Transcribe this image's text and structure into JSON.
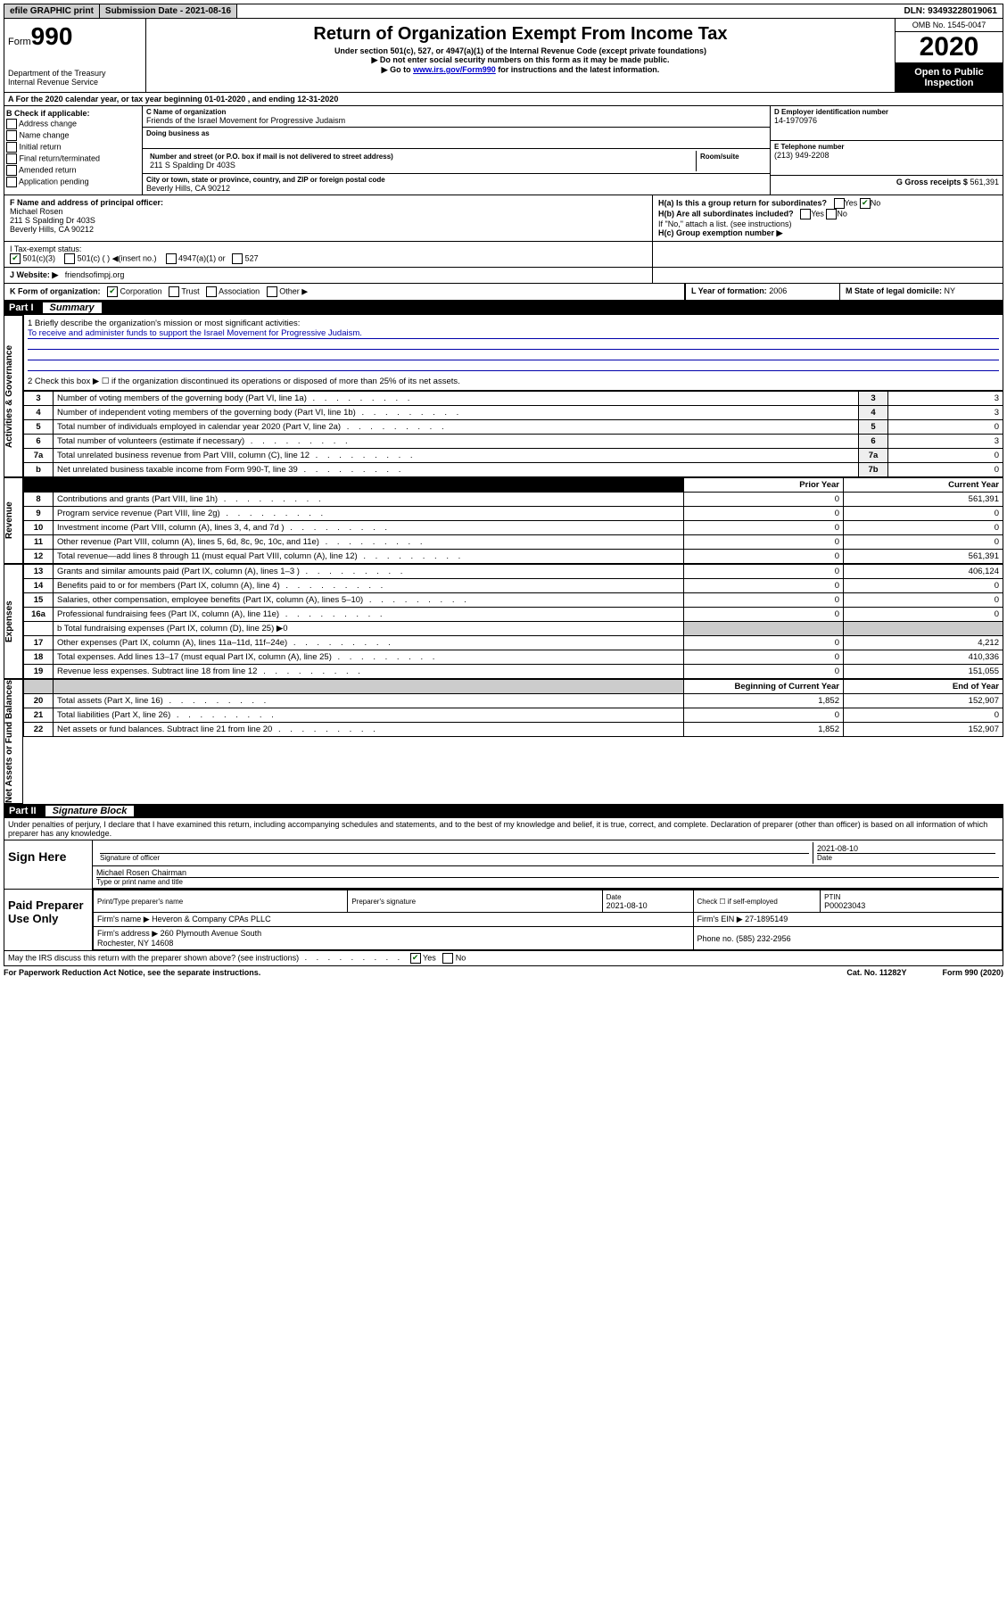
{
  "topbar": {
    "efile": "efile GRAPHIC print",
    "submission_label": "Submission Date - 2021-08-16",
    "dln": "DLN: 93493228019061"
  },
  "header": {
    "form_label": "Form",
    "form_num": "990",
    "dept": "Department of the Treasury\nInternal Revenue Service",
    "title": "Return of Organization Exempt From Income Tax",
    "sub1": "Under section 501(c), 527, or 4947(a)(1) of the Internal Revenue Code (except private foundations)",
    "sub2": "▶ Do not enter social security numbers on this form as it may be made public.",
    "sub3_pre": "▶ Go to ",
    "sub3_link": "www.irs.gov/Form990",
    "sub3_post": " for instructions and the latest information.",
    "omb": "OMB No. 1545-0047",
    "year": "2020",
    "open": "Open to Public Inspection"
  },
  "line_a": "A For the 2020 calendar year, or tax year beginning 01-01-2020   , and ending 12-31-2020",
  "box_b": {
    "title": "B Check if applicable:",
    "items": [
      "Address change",
      "Name change",
      "Initial return",
      "Final return/terminated",
      "Amended return",
      "Application pending"
    ]
  },
  "box_c": {
    "name_label": "C Name of organization",
    "name": "Friends of the Israel Movement for Progressive Judaism",
    "dba_label": "Doing business as",
    "addr_label": "Number and street (or P.O. box if mail is not delivered to street address)",
    "suite_label": "Room/suite",
    "addr": "211 S Spalding Dr 403S",
    "city_label": "City or town, state or province, country, and ZIP or foreign postal code",
    "city": "Beverly Hills, CA  90212"
  },
  "box_d": {
    "label": "D Employer identification number",
    "value": "14-1970976"
  },
  "box_e": {
    "label": "E Telephone number",
    "value": "(213) 949-2208"
  },
  "box_g": {
    "label": "G Gross receipts $",
    "value": "561,391"
  },
  "box_f": {
    "label": "F Name and address of principal officer:",
    "name": "Michael Rosen",
    "addr1": "211 S Spalding Dr 403S",
    "addr2": "Beverly Hills, CA  90212"
  },
  "box_h": {
    "ha": "H(a)  Is this a group return for subordinates?",
    "hb": "H(b)  Are all subordinates included?",
    "hb_note": "If \"No,\" attach a list. (see instructions)",
    "hc": "H(c)  Group exemption number ▶"
  },
  "tax_status": {
    "label": "I    Tax-exempt status:",
    "opt1": "501(c)(3)",
    "opt2": "501(c) (  ) ◀(insert no.)",
    "opt3": "4947(a)(1) or",
    "opt4": "527"
  },
  "website": {
    "label": "J   Website: ▶",
    "value": "friendsofimpj.org"
  },
  "box_k": "K Form of organization:",
  "k_opts": [
    "Corporation",
    "Trust",
    "Association",
    "Other ▶"
  ],
  "box_l": {
    "label": "L Year of formation:",
    "value": "2006"
  },
  "box_m": {
    "label": "M State of legal domicile:",
    "value": "NY"
  },
  "part1": {
    "num": "Part I",
    "title": "Summary"
  },
  "side_labels": {
    "ag": "Activities & Governance",
    "rev": "Revenue",
    "exp": "Expenses",
    "na": "Net Assets or Fund Balances"
  },
  "summary": {
    "line1_label": "1   Briefly describe the organization's mission or most significant activities:",
    "line1_text": "To receive and administer funds to support the Israel Movement for Progressive Judaism.",
    "line2": "2   Check this box ▶ ☐  if the organization discontinued its operations or disposed of more than 25% of its net assets.",
    "rows_top": [
      {
        "n": "3",
        "t": "Number of voting members of the governing body (Part VI, line 1a)",
        "box": "3",
        "v": "3"
      },
      {
        "n": "4",
        "t": "Number of independent voting members of the governing body (Part VI, line 1b)",
        "box": "4",
        "v": "3"
      },
      {
        "n": "5",
        "t": "Total number of individuals employed in calendar year 2020 (Part V, line 2a)",
        "box": "5",
        "v": "0"
      },
      {
        "n": "6",
        "t": "Total number of volunteers (estimate if necessary)",
        "box": "6",
        "v": "3"
      },
      {
        "n": "7a",
        "t": "Total unrelated business revenue from Part VIII, column (C), line 12",
        "box": "7a",
        "v": "0"
      },
      {
        "n": "b",
        "t": "Net unrelated business taxable income from Form 990-T, line 39",
        "box": "7b",
        "v": "0"
      }
    ],
    "col_prior": "Prior Year",
    "col_current": "Current Year",
    "rows_rev": [
      {
        "n": "8",
        "t": "Contributions and grants (Part VIII, line 1h)",
        "p": "0",
        "c": "561,391"
      },
      {
        "n": "9",
        "t": "Program service revenue (Part VIII, line 2g)",
        "p": "0",
        "c": "0"
      },
      {
        "n": "10",
        "t": "Investment income (Part VIII, column (A), lines 3, 4, and 7d )",
        "p": "0",
        "c": "0"
      },
      {
        "n": "11",
        "t": "Other revenue (Part VIII, column (A), lines 5, 6d, 8c, 9c, 10c, and 11e)",
        "p": "0",
        "c": "0"
      },
      {
        "n": "12",
        "t": "Total revenue—add lines 8 through 11 (must equal Part VIII, column (A), line 12)",
        "p": "0",
        "c": "561,391"
      }
    ],
    "rows_exp": [
      {
        "n": "13",
        "t": "Grants and similar amounts paid (Part IX, column (A), lines 1–3 )",
        "p": "0",
        "c": "406,124"
      },
      {
        "n": "14",
        "t": "Benefits paid to or for members (Part IX, column (A), line 4)",
        "p": "0",
        "c": "0"
      },
      {
        "n": "15",
        "t": "Salaries, other compensation, employee benefits (Part IX, column (A), lines 5–10)",
        "p": "0",
        "c": "0"
      },
      {
        "n": "16a",
        "t": "Professional fundraising fees (Part IX, column (A), line 11e)",
        "p": "0",
        "c": "0"
      }
    ],
    "line16b": "b   Total fundraising expenses (Part IX, column (D), line 25) ▶0",
    "rows_exp2": [
      {
        "n": "17",
        "t": "Other expenses (Part IX, column (A), lines 11a–11d, 11f–24e)",
        "p": "0",
        "c": "4,212"
      },
      {
        "n": "18",
        "t": "Total expenses. Add lines 13–17 (must equal Part IX, column (A), line 25)",
        "p": "0",
        "c": "410,336"
      },
      {
        "n": "19",
        "t": "Revenue less expenses. Subtract line 18 from line 12",
        "p": "0",
        "c": "151,055"
      }
    ],
    "col_begin": "Beginning of Current Year",
    "col_end": "End of Year",
    "rows_na": [
      {
        "n": "20",
        "t": "Total assets (Part X, line 16)",
        "p": "1,852",
        "c": "152,907"
      },
      {
        "n": "21",
        "t": "Total liabilities (Part X, line 26)",
        "p": "0",
        "c": "0"
      },
      {
        "n": "22",
        "t": "Net assets or fund balances. Subtract line 21 from line 20",
        "p": "1,852",
        "c": "152,907"
      }
    ]
  },
  "part2": {
    "num": "Part II",
    "title": "Signature Block"
  },
  "perjury": "Under penalties of perjury, I declare that I have examined this return, including accompanying schedules and statements, and to the best of my knowledge and belief, it is true, correct, and complete. Declaration of preparer (other than officer) is based on all information of which preparer has any knowledge.",
  "sign": {
    "here": "Sign Here",
    "sig_label": "Signature of officer",
    "date": "2021-08-10",
    "date_label": "Date",
    "name": "Michael Rosen  Chairman",
    "name_label": "Type or print name and title"
  },
  "prep": {
    "title": "Paid Preparer Use Only",
    "h1": "Print/Type preparer's name",
    "h2": "Preparer's signature",
    "h3": "Date",
    "date": "2021-08-10",
    "h4": "Check ☐ if self-employed",
    "h5": "PTIN",
    "ptin": "P00023043",
    "firm_label": "Firm's name    ▶",
    "firm": "Heveron & Company CPAs PLLC",
    "ein_label": "Firm's EIN ▶",
    "ein": "27-1895149",
    "addr_label": "Firm's address ▶",
    "addr": "260 Plymouth Avenue South\nRochester, NY  14608",
    "phone_label": "Phone no.",
    "phone": "(585) 232-2956"
  },
  "discuss": "May the IRS discuss this return with the preparer shown above? (see instructions)",
  "footer": {
    "left": "For Paperwork Reduction Act Notice, see the separate instructions.",
    "mid": "Cat. No. 11282Y",
    "right": "Form 990 (2020)"
  }
}
